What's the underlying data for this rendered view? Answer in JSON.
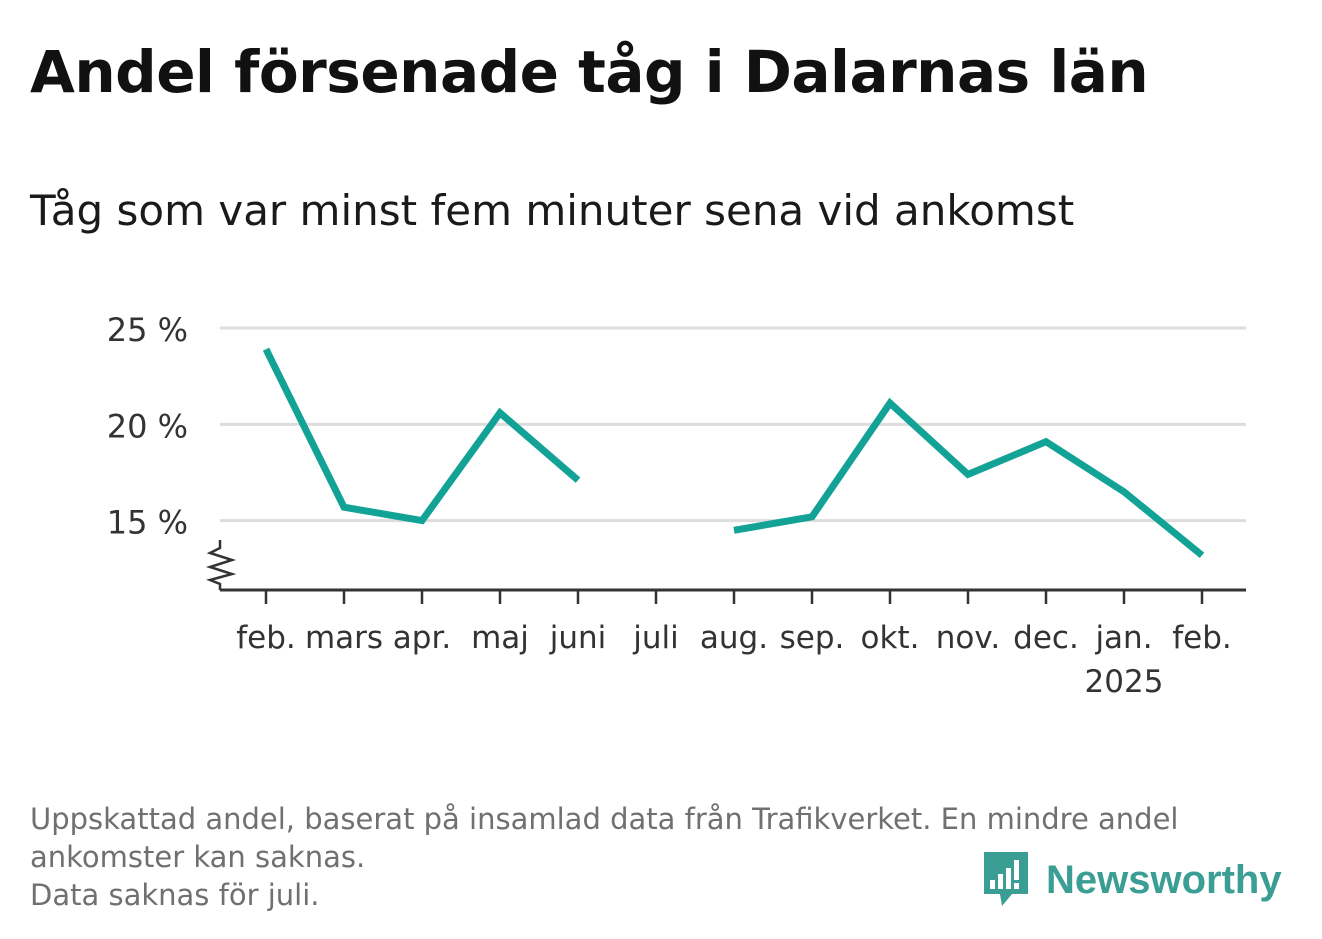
{
  "title": "Andel försenade tåg i Dalarnas län",
  "subtitle": "Tåg som var minst fem minuter sena vid ankomst",
  "footnote": {
    "line1": "Uppskattad andel, baserat på insamlad data från Trafikverket. En mindre andel ankomster kan saknas.",
    "line2": "Data saknas för juli."
  },
  "logo": {
    "text": "Newsworthy",
    "icon": "newsworthy-chart-bubble-icon",
    "color": "#3a9e94"
  },
  "colors": {
    "line": "#13a396",
    "grid": "#dddddd",
    "axis": "#333333",
    "tick_label": "#333333"
  },
  "chart_data": {
    "type": "line",
    "categories": [
      "feb.",
      "mars",
      "apr.",
      "maj",
      "juni",
      "juli",
      "aug.",
      "sep.",
      "okt.",
      "nov.",
      "dec.",
      "jan.",
      "feb."
    ],
    "year_label": {
      "category_index": 11,
      "text": "2025"
    },
    "series": [
      {
        "values": [
          23.9,
          15.7,
          15.0,
          20.6,
          17.1,
          null,
          14.5,
          15.2,
          21.1,
          17.4,
          19.1,
          16.5,
          13.2
        ]
      }
    ],
    "yticks": [
      15,
      20,
      25
    ],
    "ytick_labels": [
      "15 %",
      "20 %",
      "25 %"
    ],
    "ylim": [
      11.4,
      25
    ],
    "y_axis_broken": true,
    "grid": true,
    "legend": "none"
  }
}
